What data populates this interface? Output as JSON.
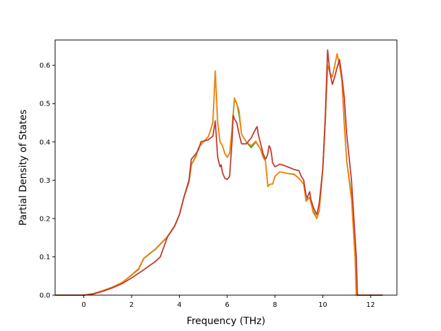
{
  "chart_data": {
    "type": "line",
    "title": "",
    "xlabel": "Frequency (THz)",
    "ylabel": "Partial Density of States",
    "xlim": [
      -1.2,
      13.1
    ],
    "ylim": [
      0.0,
      0.666
    ],
    "xticks": [
      0,
      2,
      4,
      6,
      8,
      10,
      12
    ],
    "yticks": [
      0.0,
      0.1,
      0.2,
      0.3,
      0.4,
      0.5,
      0.6
    ],
    "xtick_labels": [
      "0",
      "2",
      "4",
      "6",
      "8",
      "10",
      "12"
    ],
    "ytick_labels": [
      "0.0",
      "0.1",
      "0.2",
      "0.3",
      "0.4",
      "0.5",
      "0.6"
    ],
    "grid": false,
    "legend": "none",
    "series": [
      {
        "color": "#2ca02c",
        "points": [
          [
            -1.2,
            0.0
          ],
          [
            0,
            0.0
          ],
          [
            0.4,
            0.004
          ],
          [
            0.8,
            0.012
          ],
          [
            1.2,
            0.021
          ],
          [
            1.6,
            0.033
          ],
          [
            2.0,
            0.052
          ],
          [
            2.3,
            0.068
          ],
          [
            2.5,
            0.095
          ],
          [
            3.0,
            0.12
          ],
          [
            3.5,
            0.152
          ],
          [
            3.8,
            0.18
          ],
          [
            4.0,
            0.21
          ],
          [
            4.2,
            0.258
          ],
          [
            4.4,
            0.295
          ],
          [
            4.5,
            0.34
          ],
          [
            4.7,
            0.365
          ],
          [
            4.8,
            0.385
          ],
          [
            5.0,
            0.4
          ],
          [
            5.2,
            0.412
          ],
          [
            5.3,
            0.43
          ],
          [
            5.4,
            0.45
          ],
          [
            5.5,
            0.585
          ],
          [
            5.6,
            0.45
          ],
          [
            5.7,
            0.4
          ],
          [
            5.8,
            0.39
          ],
          [
            5.9,
            0.37
          ],
          [
            6.0,
            0.36
          ],
          [
            6.1,
            0.37
          ],
          [
            6.2,
            0.43
          ],
          [
            6.3,
            0.51
          ],
          [
            6.4,
            0.5
          ],
          [
            6.5,
            0.47
          ],
          [
            6.6,
            0.42
          ],
          [
            6.8,
            0.4
          ],
          [
            7.0,
            0.385
          ],
          [
            7.2,
            0.4
          ],
          [
            7.4,
            0.38
          ],
          [
            7.5,
            0.36
          ],
          [
            7.6,
            0.35
          ],
          [
            7.7,
            0.285
          ],
          [
            7.8,
            0.29
          ],
          [
            7.9,
            0.29
          ],
          [
            8.0,
            0.31
          ],
          [
            8.2,
            0.322
          ],
          [
            8.5,
            0.318
          ],
          [
            8.8,
            0.315
          ],
          [
            9.0,
            0.305
          ],
          [
            9.2,
            0.29
          ],
          [
            9.3,
            0.25
          ],
          [
            9.45,
            0.255
          ],
          [
            9.6,
            0.22
          ],
          [
            9.75,
            0.2
          ],
          [
            9.85,
            0.22
          ],
          [
            10.0,
            0.33
          ],
          [
            10.1,
            0.45
          ],
          [
            10.2,
            0.6
          ],
          [
            10.3,
            0.58
          ],
          [
            10.4,
            0.57
          ],
          [
            10.5,
            0.6
          ],
          [
            10.6,
            0.63
          ],
          [
            10.7,
            0.6
          ],
          [
            10.8,
            0.56
          ],
          [
            10.9,
            0.45
          ],
          [
            11.0,
            0.35
          ],
          [
            11.2,
            0.26
          ],
          [
            11.3,
            0.15
          ],
          [
            11.35,
            0.1
          ],
          [
            11.4,
            0.0
          ],
          [
            12.5,
            0.0
          ]
        ]
      },
      {
        "color": "#ff7f0e",
        "points": [
          [
            -1.2,
            0.0
          ],
          [
            0,
            0.0
          ],
          [
            0.4,
            0.004
          ],
          [
            0.8,
            0.012
          ],
          [
            1.2,
            0.021
          ],
          [
            1.6,
            0.033
          ],
          [
            2.0,
            0.053
          ],
          [
            2.3,
            0.07
          ],
          [
            2.5,
            0.096
          ],
          [
            3.0,
            0.121
          ],
          [
            3.5,
            0.153
          ],
          [
            3.8,
            0.181
          ],
          [
            4.0,
            0.21
          ],
          [
            4.2,
            0.258
          ],
          [
            4.4,
            0.295
          ],
          [
            4.5,
            0.34
          ],
          [
            4.7,
            0.362
          ],
          [
            4.8,
            0.385
          ],
          [
            5.0,
            0.4
          ],
          [
            5.2,
            0.413
          ],
          [
            5.3,
            0.43
          ],
          [
            5.4,
            0.452
          ],
          [
            5.5,
            0.585
          ],
          [
            5.6,
            0.45
          ],
          [
            5.7,
            0.4
          ],
          [
            5.8,
            0.39
          ],
          [
            5.9,
            0.37
          ],
          [
            6.0,
            0.36
          ],
          [
            6.1,
            0.37
          ],
          [
            6.2,
            0.43
          ],
          [
            6.3,
            0.515
          ],
          [
            6.4,
            0.5
          ],
          [
            6.5,
            0.48
          ],
          [
            6.6,
            0.42
          ],
          [
            6.8,
            0.4
          ],
          [
            7.0,
            0.39
          ],
          [
            7.2,
            0.402
          ],
          [
            7.4,
            0.38
          ],
          [
            7.5,
            0.362
          ],
          [
            7.6,
            0.35
          ],
          [
            7.7,
            0.283
          ],
          [
            7.8,
            0.29
          ],
          [
            7.9,
            0.29
          ],
          [
            8.0,
            0.31
          ],
          [
            8.2,
            0.322
          ],
          [
            8.5,
            0.318
          ],
          [
            8.8,
            0.316
          ],
          [
            9.0,
            0.305
          ],
          [
            9.2,
            0.29
          ],
          [
            9.3,
            0.245
          ],
          [
            9.45,
            0.255
          ],
          [
            9.6,
            0.215
          ],
          [
            9.75,
            0.2
          ],
          [
            9.85,
            0.22
          ],
          [
            10.0,
            0.33
          ],
          [
            10.1,
            0.45
          ],
          [
            10.2,
            0.6
          ],
          [
            10.3,
            0.58
          ],
          [
            10.4,
            0.57
          ],
          [
            10.5,
            0.6
          ],
          [
            10.6,
            0.63
          ],
          [
            10.7,
            0.6
          ],
          [
            10.8,
            0.56
          ],
          [
            10.9,
            0.44
          ],
          [
            11.0,
            0.35
          ],
          [
            11.2,
            0.25
          ],
          [
            11.3,
            0.15
          ],
          [
            11.35,
            0.1
          ],
          [
            11.4,
            0.0
          ],
          [
            12.5,
            0.0
          ]
        ]
      },
      {
        "color": "#c0392b",
        "points": [
          [
            -1.2,
            0.0
          ],
          [
            0,
            0.0
          ],
          [
            0.4,
            0.003
          ],
          [
            0.8,
            0.01
          ],
          [
            1.2,
            0.019
          ],
          [
            1.6,
            0.03
          ],
          [
            2.0,
            0.045
          ],
          [
            2.5,
            0.066
          ],
          [
            3.0,
            0.088
          ],
          [
            3.2,
            0.1
          ],
          [
            3.5,
            0.152
          ],
          [
            3.8,
            0.18
          ],
          [
            4.0,
            0.21
          ],
          [
            4.2,
            0.258
          ],
          [
            4.4,
            0.3
          ],
          [
            4.5,
            0.355
          ],
          [
            4.7,
            0.37
          ],
          [
            4.8,
            0.38
          ],
          [
            4.9,
            0.4
          ],
          [
            5.0,
            0.402
          ],
          [
            5.2,
            0.405
          ],
          [
            5.4,
            0.415
          ],
          [
            5.5,
            0.455
          ],
          [
            5.6,
            0.36
          ],
          [
            5.7,
            0.335
          ],
          [
            5.75,
            0.34
          ],
          [
            5.8,
            0.32
          ],
          [
            5.9,
            0.305
          ],
          [
            6.0,
            0.302
          ],
          [
            6.1,
            0.31
          ],
          [
            6.2,
            0.4
          ],
          [
            6.25,
            0.47
          ],
          [
            6.3,
            0.46
          ],
          [
            6.4,
            0.45
          ],
          [
            6.5,
            0.42
          ],
          [
            6.6,
            0.395
          ],
          [
            6.8,
            0.395
          ],
          [
            7.0,
            0.41
          ],
          [
            7.2,
            0.435
          ],
          [
            7.25,
            0.44
          ],
          [
            7.3,
            0.42
          ],
          [
            7.5,
            0.37
          ],
          [
            7.6,
            0.355
          ],
          [
            7.65,
            0.36
          ],
          [
            7.7,
            0.37
          ],
          [
            7.75,
            0.39
          ],
          [
            7.8,
            0.385
          ],
          [
            7.85,
            0.37
          ],
          [
            7.9,
            0.345
          ],
          [
            8.0,
            0.335
          ],
          [
            8.2,
            0.342
          ],
          [
            8.4,
            0.338
          ],
          [
            8.6,
            0.333
          ],
          [
            8.8,
            0.328
          ],
          [
            9.0,
            0.325
          ],
          [
            9.1,
            0.31
          ],
          [
            9.2,
            0.3
          ],
          [
            9.3,
            0.26
          ],
          [
            9.35,
            0.255
          ],
          [
            9.45,
            0.27
          ],
          [
            9.5,
            0.25
          ],
          [
            9.6,
            0.23
          ],
          [
            9.75,
            0.21
          ],
          [
            9.85,
            0.24
          ],
          [
            10.0,
            0.33
          ],
          [
            10.1,
            0.46
          ],
          [
            10.2,
            0.64
          ],
          [
            10.3,
            0.58
          ],
          [
            10.4,
            0.55
          ],
          [
            10.5,
            0.57
          ],
          [
            10.6,
            0.595
          ],
          [
            10.7,
            0.615
          ],
          [
            10.8,
            0.57
          ],
          [
            10.9,
            0.515
          ],
          [
            11.0,
            0.42
          ],
          [
            11.2,
            0.3
          ],
          [
            11.3,
            0.2
          ],
          [
            11.4,
            0.1
          ],
          [
            11.45,
            0.0
          ],
          [
            12.5,
            0.0
          ]
        ]
      }
    ]
  }
}
